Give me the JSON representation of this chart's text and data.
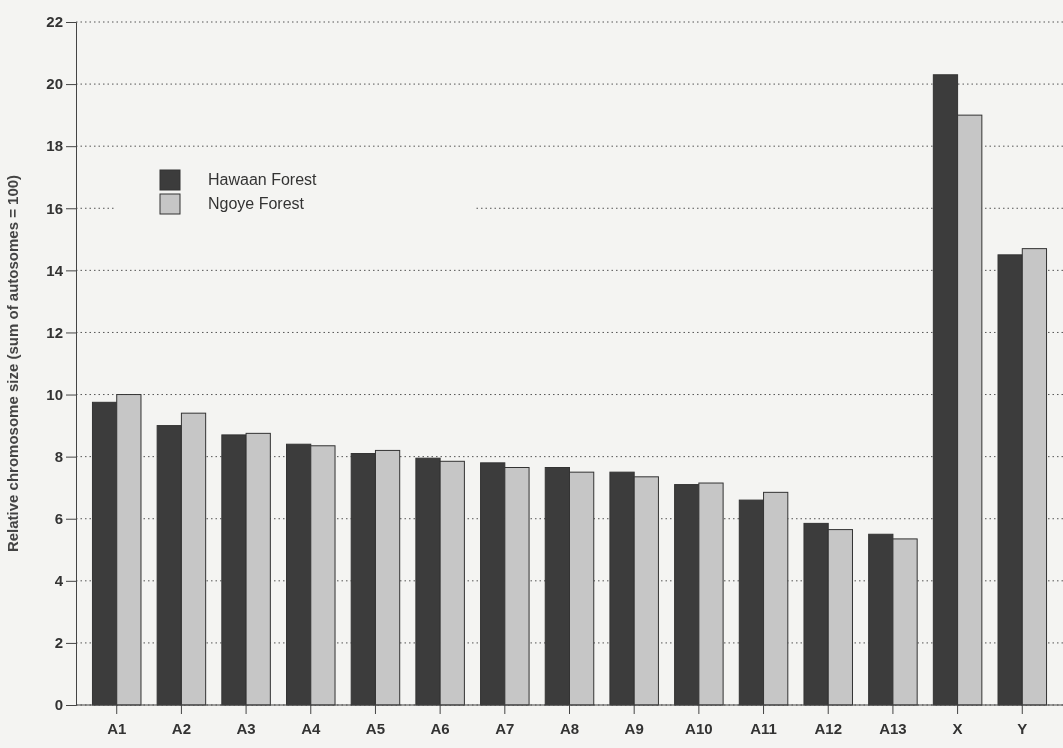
{
  "chart_data": {
    "type": "bar",
    "ylabel": "Relative chromosome size (sum of autosomes = 100)",
    "categories": [
      "A1",
      "A2",
      "A3",
      "A4",
      "A5",
      "A6",
      "A7",
      "A8",
      "A9",
      "A10",
      "A11",
      "A12",
      "A13",
      "X",
      "Y"
    ],
    "series": [
      {
        "name": "Hawaan Forest",
        "color": "#3c3c3c",
        "values": [
          9.75,
          9.0,
          8.7,
          8.4,
          8.1,
          7.95,
          7.8,
          7.65,
          7.5,
          7.1,
          6.6,
          5.85,
          5.5,
          20.3,
          14.5
        ]
      },
      {
        "name": "Ngoye Forest",
        "color": "#c6c6c6",
        "values": [
          10.0,
          9.4,
          8.75,
          8.35,
          8.2,
          7.85,
          7.65,
          7.5,
          7.35,
          7.15,
          6.85,
          5.65,
          5.35,
          19.0,
          14.7
        ]
      }
    ],
    "ylim": [
      0,
      22
    ],
    "yticks": [
      0,
      2,
      4,
      6,
      8,
      10,
      12,
      14,
      16,
      18,
      20,
      22
    ],
    "grid": "y",
    "legend": "top left"
  }
}
